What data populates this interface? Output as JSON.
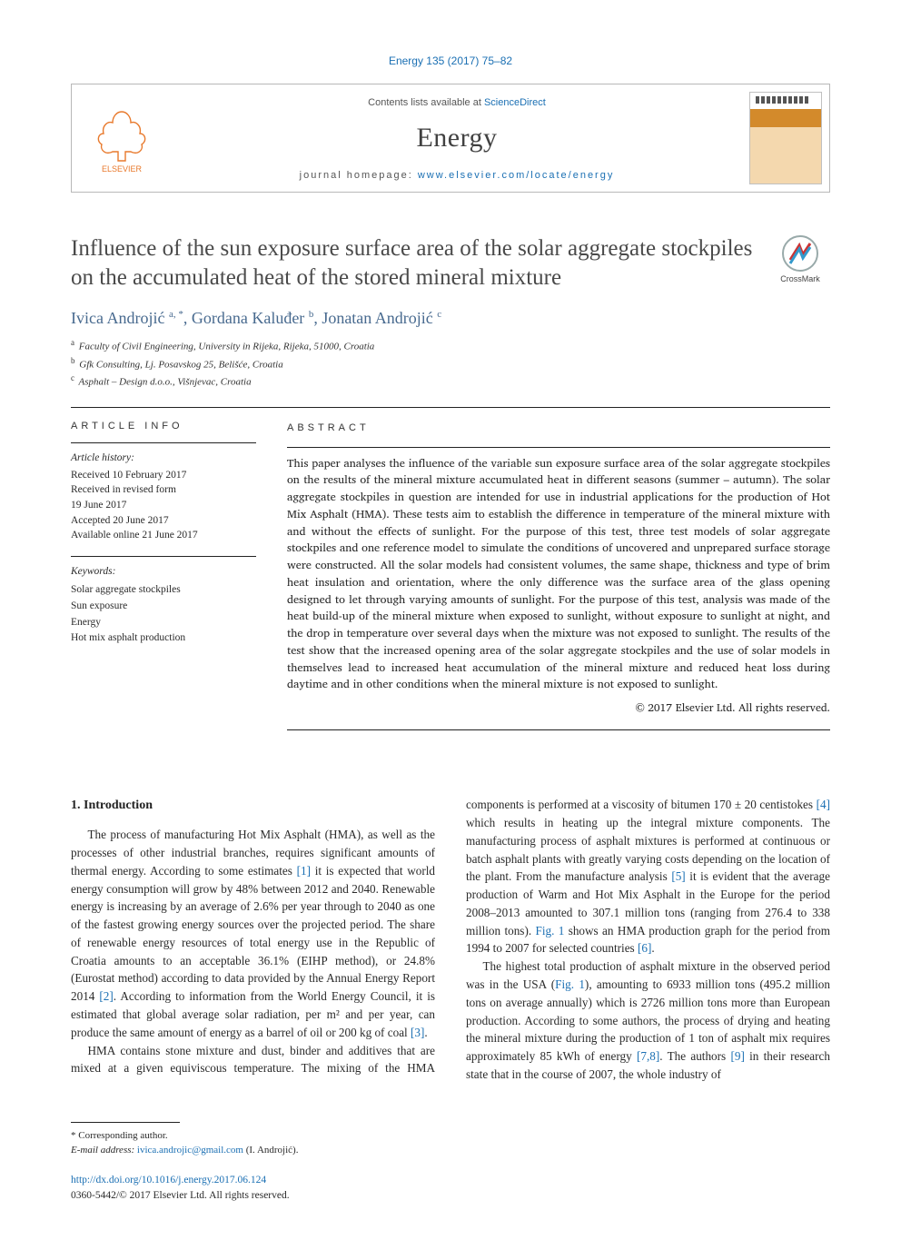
{
  "citation": "Energy 135 (2017) 75–82",
  "header": {
    "contents_prefix": "Contents lists available at ",
    "contents_link": "ScienceDirect",
    "journal": "Energy",
    "homepage_prefix": "journal homepage: ",
    "homepage_url": "www.elsevier.com/locate/energy",
    "publisher_logo_label": "ELSEVIER"
  },
  "title": "Influence of the sun exposure surface area of the solar aggregate stockpiles on the accumulated heat of the stored mineral mixture",
  "crossmark_label": "CrossMark",
  "authors_html": "Ivica Androjić <sup>a, *</sup>, Gordana Kaluđer <sup>b</sup>, Jonatan Androjić <sup>c</sup>",
  "affiliations": [
    {
      "sup": "a",
      "text": "Faculty of Civil Engineering, University in Rijeka, Rijeka, 51000, Croatia"
    },
    {
      "sup": "b",
      "text": "Gfk Consulting, Lj. Posavskog 25, Belišće, Croatia"
    },
    {
      "sup": "c",
      "text": "Asphalt – Design d.o.o., Višnjevac, Croatia"
    }
  ],
  "article_info": {
    "heading": "ARTICLE INFO",
    "history_label": "Article history:",
    "history": [
      "Received 10 February 2017",
      "Received in revised form",
      "19 June 2017",
      "Accepted 20 June 2017",
      "Available online 21 June 2017"
    ],
    "keywords_label": "Keywords:",
    "keywords": [
      "Solar aggregate stockpiles",
      "Sun exposure",
      "Energy",
      "Hot mix asphalt production"
    ]
  },
  "abstract": {
    "heading": "ABSTRACT",
    "text": "This paper analyses the influence of the variable sun exposure surface area of the solar aggregate stockpiles on the results of the mineral mixture accumulated heat in different seasons (summer – autumn). The solar aggregate stockpiles in question are intended for use in industrial applications for the production of Hot Mix Asphalt (HMA). These tests aim to establish the difference in temperature of the mineral mixture with and without the effects of sunlight. For the purpose of this test, three test models of solar aggregate stockpiles and one reference model to simulate the conditions of uncovered and unprepared surface storage were constructed. All the solar models had consistent volumes, the same shape, thickness and type of brim heat insulation and orientation, where the only difference was the surface area of the glass opening designed to let through varying amounts of sunlight. For the purpose of this test, analysis was made of the heat build-up of the mineral mixture when exposed to sunlight, without exposure to sunlight at night, and the drop in temperature over several days when the mixture was not exposed to sunlight. The results of the test show that the increased opening area of the solar aggregate stockpiles and the use of solar models in themselves lead to increased heat accumulation of the mineral mixture and reduced heat loss during daytime and in other conditions when the mineral mixture is not exposed to sunlight.",
    "copyright": "© 2017 Elsevier Ltd. All rights reserved."
  },
  "body": {
    "section_heading": "1. Introduction",
    "col1_p1_a": "The process of manufacturing Hot Mix Asphalt (HMA), as well as the processes of other industrial branches, requires significant amounts of thermal energy. According to some estimates ",
    "ref1": "[1]",
    "col1_p1_b": " it is expected that world energy consumption will grow by 48% between 2012 and 2040. Renewable energy is increasing by an average of 2.6% per year through to 2040 as one of the fastest growing energy sources over the projected period. The share of renewable energy resources of total energy use in the Republic of Croatia amounts to an acceptable 36.1% (EIHP method), or 24.8% (Eurostat method) according to data provided by the Annual Energy Report 2014 ",
    "ref2": "[2]",
    "col1_p1_c": ". According to information from the World Energy Council, it is estimated that global average solar radiation, per m² and per year, can produce the same amount of energy as a barrel of oil or 200 kg of coal ",
    "ref3": "[3]",
    "col1_p1_d": ".",
    "col2_p1_a": "HMA contains stone mixture and dust, binder and additives that are mixed at a given equiviscous temperature. The mixing of the HMA components is performed at a viscosity of bitumen 170 ± 20 centistokes ",
    "ref4": "[4]",
    "col2_p1_b": " which results in heating up the integral mixture components. The manufacturing process of asphalt mixtures is performed at continuous or batch asphalt plants with greatly varying costs depending on the location of the plant. From the manufacture analysis ",
    "ref5": "[5]",
    "col2_p1_c": " it is evident that the average production of Warm and Hot Mix Asphalt in the Europe for the period 2008–2013 amounted to 307.1 million tons (ranging from 276.4 to 338 million tons). ",
    "fig1a": "Fig. 1",
    "col2_p1_d": " shows an HMA production graph for the period from 1994 to 2007 for selected countries ",
    "ref6": "[6]",
    "col2_p1_e": ".",
    "col2_p2_a": "The highest total production of asphalt mixture in the observed period was in the USA (",
    "fig1b": "Fig. 1",
    "col2_p2_b": "), amounting to 6933 million tons (495.2 million tons on average annually) which is 2726 million tons more than European production. According to some authors, the process of drying and heating the mineral mixture during the production of 1 ton of asphalt mix requires approximately 85 kWh of energy ",
    "ref78": "[7,8]",
    "col2_p2_c": ". The authors ",
    "ref9": "[9]",
    "col2_p2_d": " in their research state that in the course of 2007, the whole industry of"
  },
  "footnotes": {
    "corr": "* Corresponding author.",
    "email_label": "E-mail address: ",
    "email": "ivica.androjic@gmail.com",
    "email_person": " (I. Androjić)."
  },
  "doi": {
    "url": "http://dx.doi.org/10.1016/j.energy.2017.06.124",
    "issn_line": "0360-5442/© 2017 Elsevier Ltd. All rights reserved."
  },
  "colors": {
    "link": "#1a6fb3",
    "author": "#486a8f",
    "title": "#4a4a4a",
    "text": "#2a2a2a"
  }
}
